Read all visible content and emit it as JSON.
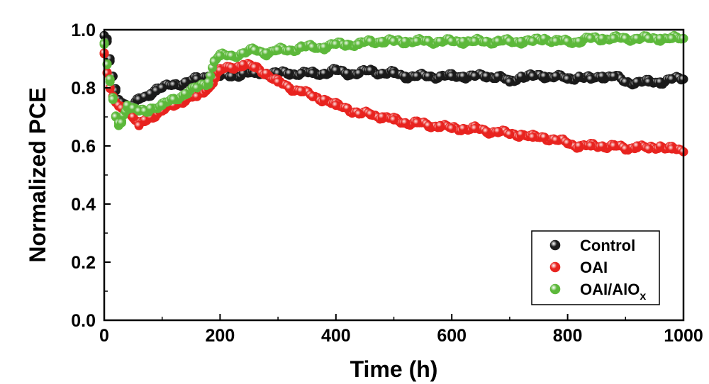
{
  "chart_data": {
    "type": "scatter",
    "title": "",
    "xlabel": "Time (h)",
    "ylabel": "Normalized PCE",
    "xlim": [
      0,
      1000
    ],
    "ylim": [
      0,
      1.0
    ],
    "xticks": [
      0,
      200,
      400,
      600,
      800,
      1000
    ],
    "yticks": [
      "0.0",
      "0.2",
      "0.4",
      "0.6",
      "0.8",
      "1.0"
    ],
    "grid": false,
    "legend_position": "bottom-right",
    "series": [
      {
        "name": "Control",
        "color": "#1a1a1a",
        "x": [
          0,
          5,
          10,
          15,
          20,
          25,
          30,
          40,
          50,
          60,
          70,
          80,
          90,
          100,
          120,
          140,
          160,
          180,
          200,
          220,
          240,
          260,
          280,
          300,
          320,
          340,
          360,
          380,
          400,
          420,
          440,
          460,
          480,
          500,
          520,
          540,
          560,
          580,
          600,
          620,
          640,
          660,
          680,
          700,
          720,
          740,
          760,
          780,
          800,
          820,
          840,
          860,
          880,
          900,
          920,
          940,
          960,
          980,
          1000
        ],
        "y": [
          0.98,
          0.96,
          0.9,
          0.84,
          0.79,
          0.76,
          0.75,
          0.74,
          0.74,
          0.76,
          0.77,
          0.78,
          0.79,
          0.8,
          0.81,
          0.82,
          0.83,
          0.84,
          0.84,
          0.84,
          0.85,
          0.85,
          0.85,
          0.85,
          0.85,
          0.85,
          0.85,
          0.85,
          0.86,
          0.85,
          0.85,
          0.86,
          0.85,
          0.85,
          0.84,
          0.84,
          0.84,
          0.84,
          0.84,
          0.84,
          0.84,
          0.84,
          0.84,
          0.82,
          0.84,
          0.84,
          0.84,
          0.84,
          0.83,
          0.84,
          0.83,
          0.84,
          0.84,
          0.82,
          0.82,
          0.82,
          0.82,
          0.83,
          0.83
        ]
      },
      {
        "name": "OAI",
        "color": "#e8231f",
        "x": [
          0,
          5,
          10,
          15,
          20,
          25,
          30,
          40,
          50,
          60,
          70,
          80,
          100,
          120,
          140,
          160,
          180,
          200,
          220,
          240,
          260,
          280,
          300,
          320,
          340,
          360,
          380,
          400,
          420,
          440,
          460,
          480,
          500,
          520,
          540,
          560,
          580,
          600,
          620,
          640,
          660,
          680,
          700,
          720,
          740,
          760,
          780,
          800,
          820,
          840,
          860,
          880,
          900,
          920,
          940,
          960,
          980,
          1000
        ],
        "y": [
          0.92,
          0.85,
          0.8,
          0.77,
          0.75,
          0.74,
          0.73,
          0.72,
          0.7,
          0.67,
          0.69,
          0.7,
          0.72,
          0.74,
          0.76,
          0.77,
          0.8,
          0.86,
          0.87,
          0.88,
          0.87,
          0.85,
          0.82,
          0.8,
          0.79,
          0.77,
          0.76,
          0.74,
          0.73,
          0.71,
          0.71,
          0.7,
          0.69,
          0.68,
          0.68,
          0.67,
          0.67,
          0.66,
          0.66,
          0.66,
          0.65,
          0.65,
          0.64,
          0.64,
          0.63,
          0.63,
          0.62,
          0.61,
          0.6,
          0.6,
          0.6,
          0.6,
          0.59,
          0.6,
          0.59,
          0.6,
          0.59,
          0.58
        ]
      },
      {
        "name": "OAI/AlO",
        "name_subscript": "x",
        "color": "#5cb83a",
        "x": [
          0,
          5,
          10,
          15,
          20,
          25,
          30,
          40,
          50,
          60,
          70,
          80,
          100,
          120,
          140,
          160,
          180,
          190,
          200,
          220,
          240,
          260,
          280,
          300,
          320,
          340,
          360,
          380,
          400,
          420,
          440,
          460,
          480,
          500,
          520,
          540,
          560,
          580,
          600,
          620,
          640,
          660,
          680,
          700,
          720,
          740,
          760,
          780,
          800,
          820,
          840,
          860,
          880,
          900,
          920,
          940,
          960,
          980,
          1000
        ],
        "y": [
          0.95,
          0.88,
          0.83,
          0.76,
          0.7,
          0.68,
          0.68,
          0.74,
          0.73,
          0.72,
          0.72,
          0.73,
          0.74,
          0.76,
          0.78,
          0.8,
          0.82,
          0.89,
          0.91,
          0.91,
          0.92,
          0.93,
          0.92,
          0.93,
          0.93,
          0.94,
          0.94,
          0.94,
          0.95,
          0.95,
          0.95,
          0.96,
          0.96,
          0.96,
          0.96,
          0.96,
          0.96,
          0.96,
          0.96,
          0.96,
          0.96,
          0.96,
          0.96,
          0.96,
          0.96,
          0.96,
          0.97,
          0.96,
          0.96,
          0.96,
          0.97,
          0.97,
          0.97,
          0.97,
          0.97,
          0.97,
          0.97,
          0.97,
          0.97
        ]
      }
    ]
  }
}
